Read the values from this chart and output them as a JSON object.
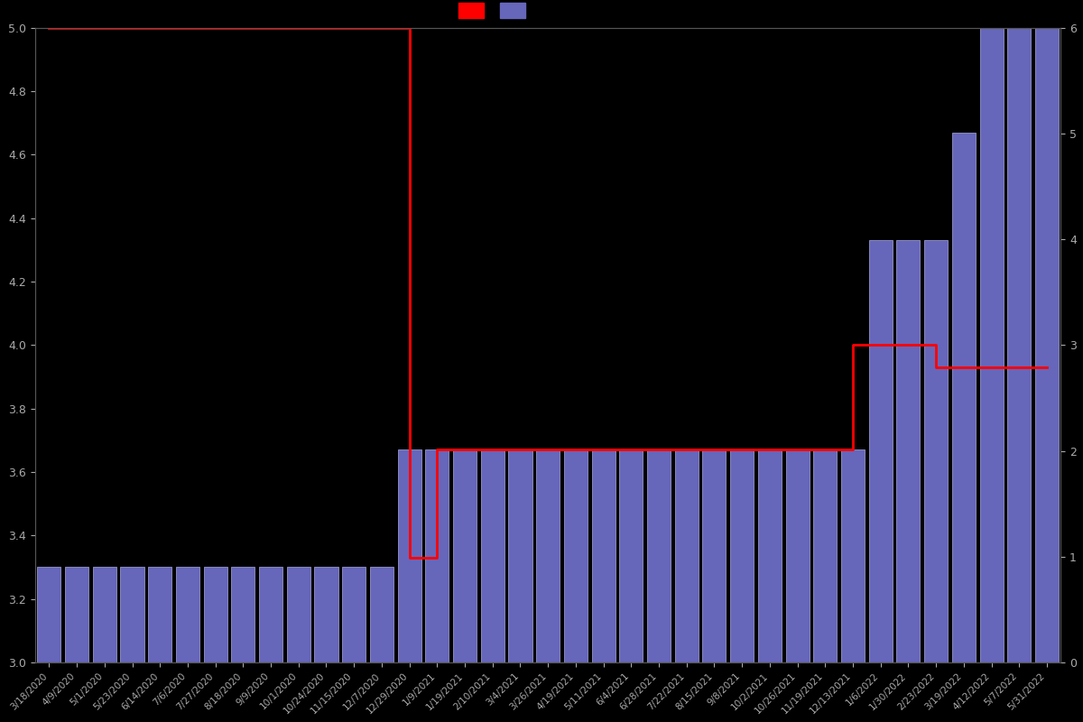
{
  "background_color": "#000000",
  "bar_color": "#6666bb",
  "bar_edgecolor": "#aaaadd",
  "line_color": "#ff0000",
  "ylim_left": [
    3.0,
    5.0
  ],
  "ylim_right": [
    0,
    6
  ],
  "dates": [
    "3/18/2020",
    "4/9/2020",
    "5/1/2020",
    "5/23/2020",
    "6/14/2020",
    "7/6/2020",
    "7/27/2020",
    "8/18/2020",
    "9/9/2020",
    "10/1/2020",
    "10/24/2020",
    "11/15/2020",
    "12/7/2020",
    "12/29/2020",
    "1/9/2021",
    "1/19/2021",
    "2/10/2021",
    "3/4/2021",
    "3/26/2021",
    "4/19/2021",
    "5/11/2021",
    "6/4/2021",
    "6/28/2021",
    "7/22/2021",
    "8/15/2021",
    "9/8/2021",
    "10/2/2021",
    "10/26/2021",
    "11/19/2021",
    "12/13/2021",
    "1/6/2022",
    "1/30/2022",
    "2/23/2022",
    "3/19/2022",
    "4/12/2022",
    "5/7/2022",
    "5/31/2022"
  ],
  "bar_values": [
    3.3,
    3.3,
    3.3,
    3.3,
    3.3,
    3.3,
    3.3,
    3.3,
    3.3,
    3.3,
    3.3,
    3.3,
    3.3,
    3.67,
    3.67,
    3.67,
    3.67,
    3.67,
    3.67,
    3.67,
    3.67,
    3.67,
    3.67,
    3.67,
    3.67,
    3.67,
    3.67,
    3.67,
    3.67,
    3.67,
    4.33,
    4.33,
    4.33,
    4.67,
    5.0,
    5.0,
    5.0
  ],
  "line_values": [
    5.0,
    5.0,
    5.0,
    5.0,
    5.0,
    5.0,
    5.0,
    5.0,
    5.0,
    5.0,
    5.0,
    5.0,
    5.0,
    3.33,
    3.67,
    3.67,
    3.67,
    3.67,
    3.67,
    3.67,
    3.67,
    3.67,
    3.67,
    3.67,
    3.67,
    3.67,
    3.67,
    3.67,
    3.67,
    4.0,
    4.0,
    4.0,
    3.93,
    3.93,
    3.93,
    3.93,
    3.93
  ]
}
